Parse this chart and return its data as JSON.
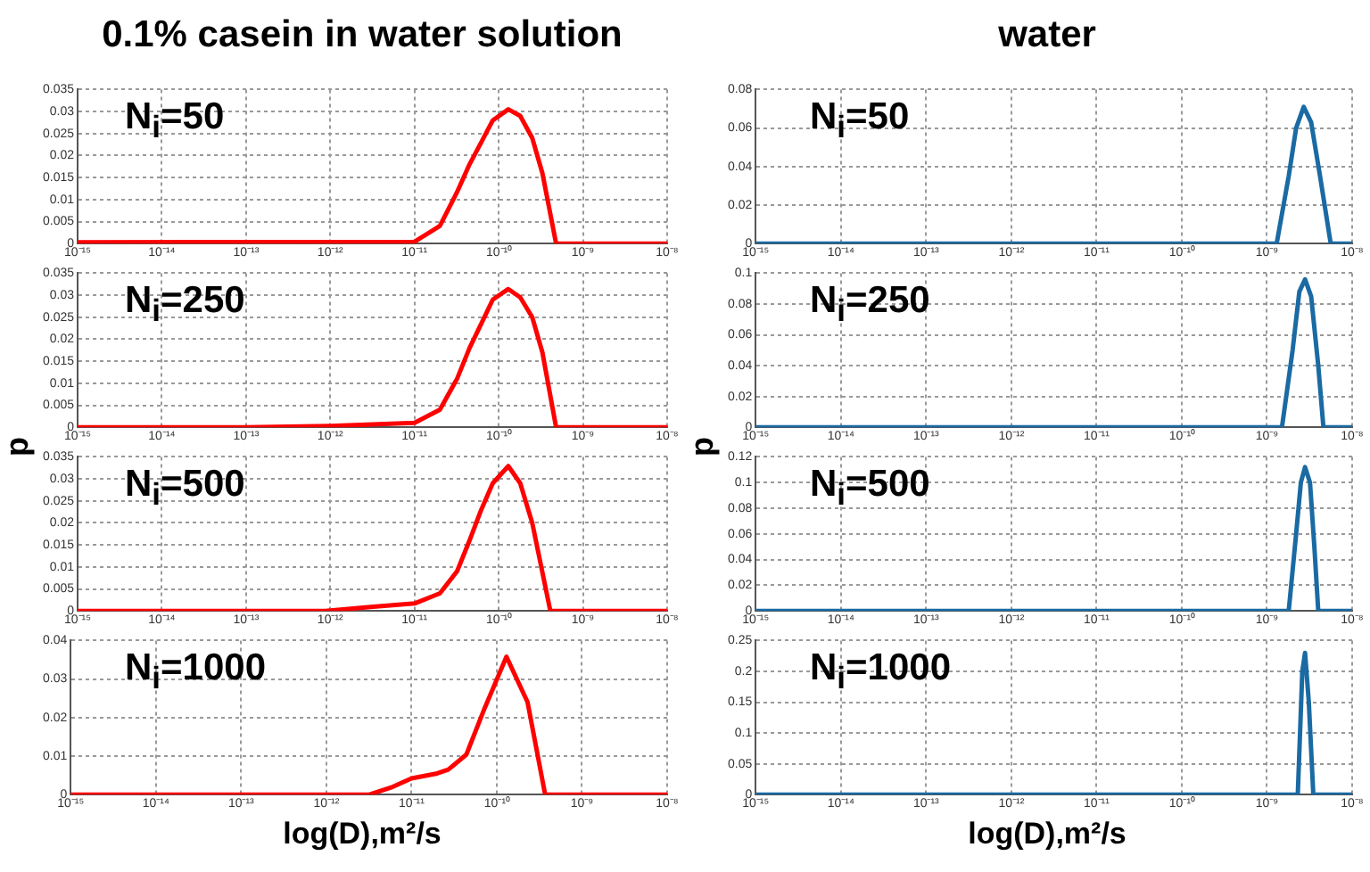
{
  "chart_data": [
    {
      "type": "line",
      "title": "0.1% casein in water solution",
      "annotations": [
        "N$_{i}$=50"
      ],
      "log": "x",
      "grid": true,
      "marker": "none",
      "x": [
        1e-15,
        1e-11,
        2e-11,
        3.2e-11,
        4.5e-11,
        6.2e-11,
        8.5e-11,
        1.3e-10,
        1.8e-10,
        2.5e-10,
        3.3e-10,
        4.8e-10,
        1e-08
      ],
      "series": [
        {
          "color": "#ff0000",
          "values": [
            0.0003,
            0.0004,
            0.004,
            0.0117,
            0.018,
            0.023,
            0.028,
            0.0305,
            0.029,
            0.024,
            0.016,
            0,
            0
          ]
        }
      ],
      "xlim": [
        1e-15,
        1e-08
      ],
      "xticks": [
        {
          "value": 1e-15,
          "label": "10⁻¹⁵"
        },
        {
          "value": 1e-14,
          "label": "10⁻¹⁴"
        },
        {
          "value": 1e-13,
          "label": "10⁻¹³"
        },
        {
          "value": 1e-12,
          "label": "10⁻¹²"
        },
        {
          "value": 1e-11,
          "label": "10⁻¹¹"
        },
        {
          "value": 1e-10,
          "label": "10⁻¹⁰"
        },
        {
          "value": 1e-09,
          "label": "10⁻⁹"
        },
        {
          "value": 1e-08,
          "label": "10⁻⁸"
        }
      ],
      "ylim": [
        0,
        0.035
      ],
      "yticks": [
        0,
        0.005,
        0.01,
        0.015,
        0.02,
        0.025,
        0.03,
        0.035
      ]
    },
    {
      "type": "line",
      "ylabel": "p",
      "annotations": [
        "N$_{i}$=250"
      ],
      "log": "x",
      "grid": true,
      "marker": "none",
      "x": [
        1e-15,
        1e-13,
        1e-12,
        1e-11,
        2e-11,
        3.2e-11,
        4.5e-11,
        6.2e-11,
        8.5e-11,
        1.3e-10,
        1.8e-10,
        2.5e-10,
        3.3e-10,
        4.8e-10,
        1e-08
      ],
      "series": [
        {
          "color": "#ff0000",
          "values": [
            0,
            0,
            0.0003,
            0.001,
            0.004,
            0.011,
            0.018,
            0.0235,
            0.029,
            0.0314,
            0.0295,
            0.025,
            0.017,
            0,
            0
          ]
        }
      ],
      "xlim": [
        1e-15,
        1e-08
      ],
      "xticks": [
        {
          "value": 1e-15,
          "label": "10⁻¹⁵"
        },
        {
          "value": 1e-14,
          "label": "10⁻¹⁴"
        },
        {
          "value": 1e-13,
          "label": "10⁻¹³"
        },
        {
          "value": 1e-12,
          "label": "10⁻¹²"
        },
        {
          "value": 1e-11,
          "label": "10⁻¹¹"
        },
        {
          "value": 1e-10,
          "label": "10⁻¹⁰"
        },
        {
          "value": 1e-09,
          "label": "10⁻⁹"
        },
        {
          "value": 1e-08,
          "label": "10⁻⁸"
        }
      ],
      "ylim": [
        0,
        0.035
      ],
      "yticks": [
        0,
        0.005,
        0.01,
        0.015,
        0.02,
        0.025,
        0.03,
        0.035
      ]
    },
    {
      "type": "line",
      "annotations": [
        "N$_{i}$=500"
      ],
      "log": "x",
      "grid": true,
      "marker": "none",
      "x": [
        1e-15,
        8.7e-13,
        3e-12,
        1e-11,
        2e-11,
        3.2e-11,
        4.5e-11,
        6.2e-11,
        8.5e-11,
        1.3e-10,
        1.8e-10,
        2.5e-10,
        4.1e-10,
        1e-08
      ],
      "series": [
        {
          "color": "#ff0000",
          "values": [
            0,
            0,
            0.0009,
            0.0017,
            0.004,
            0.009,
            0.016,
            0.023,
            0.029,
            0.0329,
            0.029,
            0.02,
            0,
            0
          ]
        }
      ],
      "xlim": [
        1e-15,
        1e-08
      ],
      "xticks": [
        {
          "value": 1e-15,
          "label": "10⁻¹⁵"
        },
        {
          "value": 1e-14,
          "label": "10⁻¹⁴"
        },
        {
          "value": 1e-13,
          "label": "10⁻¹³"
        },
        {
          "value": 1e-12,
          "label": "10⁻¹²"
        },
        {
          "value": 1e-11,
          "label": "10⁻¹¹"
        },
        {
          "value": 1e-10,
          "label": "10⁻¹⁰"
        },
        {
          "value": 1e-09,
          "label": "10⁻⁹"
        },
        {
          "value": 1e-08,
          "label": "10⁻⁸"
        }
      ],
      "ylim": [
        0,
        0.035
      ],
      "yticks": [
        0,
        0.005,
        0.01,
        0.015,
        0.02,
        0.025,
        0.03,
        0.035
      ]
    },
    {
      "type": "line",
      "xlabel": "log(D),m²/s",
      "annotations": [
        "N$_{i}$=1000"
      ],
      "log": "x",
      "grid": true,
      "marker": "none",
      "x": [
        1e-15,
        3.2e-12,
        6e-12,
        1e-11,
        2e-11,
        2.7e-11,
        4.4e-11,
        7.2e-11,
        1.3e-10,
        2.3e-10,
        3.7e-10,
        1e-08
      ],
      "series": [
        {
          "color": "#ff0000",
          "values": [
            0,
            0,
            0.002,
            0.0042,
            0.0055,
            0.0065,
            0.0104,
            0.0224,
            0.0358,
            0.024,
            0,
            0
          ]
        }
      ],
      "xlim": [
        1e-15,
        1e-08
      ],
      "xticks": [
        {
          "value": 1e-15,
          "label": "10⁻¹⁵"
        },
        {
          "value": 1e-14,
          "label": "10⁻¹⁴"
        },
        {
          "value": 1e-13,
          "label": "10⁻¹³"
        },
        {
          "value": 1e-12,
          "label": "10⁻¹²"
        },
        {
          "value": 1e-11,
          "label": "10⁻¹¹"
        },
        {
          "value": 1e-10,
          "label": "10⁻¹⁰"
        },
        {
          "value": 1e-09,
          "label": "10⁻⁹"
        },
        {
          "value": 1e-08,
          "label": "10⁻⁸"
        }
      ],
      "ylim": [
        0,
        0.04
      ],
      "yticks": [
        0,
        0.01,
        0.02,
        0.03,
        0.04
      ]
    },
    {
      "type": "line",
      "title": "water",
      "annotations": [
        "N$_{i}$=50"
      ],
      "log": "x",
      "grid": true,
      "marker": "none",
      "x": [
        1e-15,
        1.3e-09,
        1.8e-09,
        2.2e-09,
        2.7e-09,
        3.3e-09,
        4.2e-09,
        5.6e-09,
        1e-08
      ],
      "series": [
        {
          "color": "#1a6aa3",
          "values": [
            0,
            0,
            0.035,
            0.06,
            0.071,
            0.063,
            0.035,
            0,
            0
          ]
        }
      ],
      "xlim": [
        1e-15,
        1e-08
      ],
      "xticks": [
        {
          "value": 1e-15,
          "label": "10⁻¹⁵"
        },
        {
          "value": 1e-14,
          "label": "10⁻¹⁴"
        },
        {
          "value": 1e-13,
          "label": "10⁻¹³"
        },
        {
          "value": 1e-12,
          "label": "10⁻¹²"
        },
        {
          "value": 1e-11,
          "label": "10⁻¹¹"
        },
        {
          "value": 1e-10,
          "label": "10⁻¹⁰"
        },
        {
          "value": 1e-09,
          "label": "10⁻⁹"
        },
        {
          "value": 1e-08,
          "label": "10⁻⁸"
        }
      ],
      "ylim": [
        0,
        0.08
      ],
      "yticks": [
        0,
        0.02,
        0.04,
        0.06,
        0.08
      ]
    },
    {
      "type": "line",
      "ylabel": "p",
      "annotations": [
        "N$_{i}$=250"
      ],
      "log": "x",
      "grid": true,
      "marker": "none",
      "x": [
        1e-15,
        1.5e-09,
        2e-09,
        2.4e-09,
        2.8e-09,
        3.3e-09,
        4e-09,
        4.6e-09,
        1e-08
      ],
      "series": [
        {
          "color": "#1a6aa3",
          "values": [
            0,
            0,
            0.05,
            0.088,
            0.096,
            0.085,
            0.04,
            0,
            0
          ]
        }
      ],
      "xlim": [
        1e-15,
        1e-08
      ],
      "xticks": [
        {
          "value": 1e-15,
          "label": "10⁻¹⁵"
        },
        {
          "value": 1e-14,
          "label": "10⁻¹⁴"
        },
        {
          "value": 1e-13,
          "label": "10⁻¹³"
        },
        {
          "value": 1e-12,
          "label": "10⁻¹²"
        },
        {
          "value": 1e-11,
          "label": "10⁻¹¹"
        },
        {
          "value": 1e-10,
          "label": "10⁻¹⁰"
        },
        {
          "value": 1e-09,
          "label": "10⁻⁹"
        },
        {
          "value": 1e-08,
          "label": "10⁻⁸"
        }
      ],
      "ylim": [
        0,
        0.1
      ],
      "yticks": [
        0,
        0.02,
        0.04,
        0.06,
        0.08,
        0.1
      ]
    },
    {
      "type": "line",
      "annotations": [
        "N$_{i}$=500"
      ],
      "log": "x",
      "grid": true,
      "marker": "none",
      "x": [
        1e-15,
        1.8e-09,
        2.2e-09,
        2.5e-09,
        2.8e-09,
        3.2e-09,
        3.6e-09,
        4e-09,
        1e-08
      ],
      "series": [
        {
          "color": "#1a6aa3",
          "values": [
            0,
            0,
            0.06,
            0.1,
            0.112,
            0.1,
            0.05,
            0,
            0
          ]
        }
      ],
      "xlim": [
        1e-15,
        1e-08
      ],
      "xticks": [
        {
          "value": 1e-15,
          "label": "10⁻¹⁵"
        },
        {
          "value": 1e-14,
          "label": "10⁻¹⁴"
        },
        {
          "value": 1e-13,
          "label": "10⁻¹³"
        },
        {
          "value": 1e-12,
          "label": "10⁻¹²"
        },
        {
          "value": 1e-11,
          "label": "10⁻¹¹"
        },
        {
          "value": 1e-10,
          "label": "10⁻¹⁰"
        },
        {
          "value": 1e-09,
          "label": "10⁻⁹"
        },
        {
          "value": 1e-08,
          "label": "10⁻⁸"
        }
      ],
      "ylim": [
        0,
        0.12
      ],
      "yticks": [
        0,
        0.02,
        0.04,
        0.06,
        0.08,
        0.1,
        0.12
      ]
    },
    {
      "type": "line",
      "xlabel": "log(D),m²/s",
      "annotations": [
        "N$_{i}$=1000"
      ],
      "log": "x",
      "grid": true,
      "marker": "none",
      "x": [
        1e-15,
        2.3e-09,
        2.6e-09,
        2.8e-09,
        3.1e-09,
        3.5e-09,
        1e-08
      ],
      "series": [
        {
          "color": "#1a6aa3",
          "values": [
            0,
            0,
            0.2,
            0.23,
            0.15,
            0,
            0
          ]
        }
      ],
      "xlim": [
        1e-15,
        1e-08
      ],
      "xticks": [
        {
          "value": 1e-15,
          "label": "10⁻¹⁵"
        },
        {
          "value": 1e-14,
          "label": "10⁻¹⁴"
        },
        {
          "value": 1e-13,
          "label": "10⁻¹³"
        },
        {
          "value": 1e-12,
          "label": "10⁻¹²"
        },
        {
          "value": 1e-11,
          "label": "10⁻¹¹"
        },
        {
          "value": 1e-10,
          "label": "10⁻¹⁰"
        },
        {
          "value": 1e-09,
          "label": "10⁻⁹"
        },
        {
          "value": 1e-08,
          "label": "10⁻⁸"
        }
      ],
      "ylim": [
        0,
        0.25
      ],
      "yticks": [
        0,
        0.05,
        0.1,
        0.15,
        0.2,
        0.25
      ]
    }
  ]
}
